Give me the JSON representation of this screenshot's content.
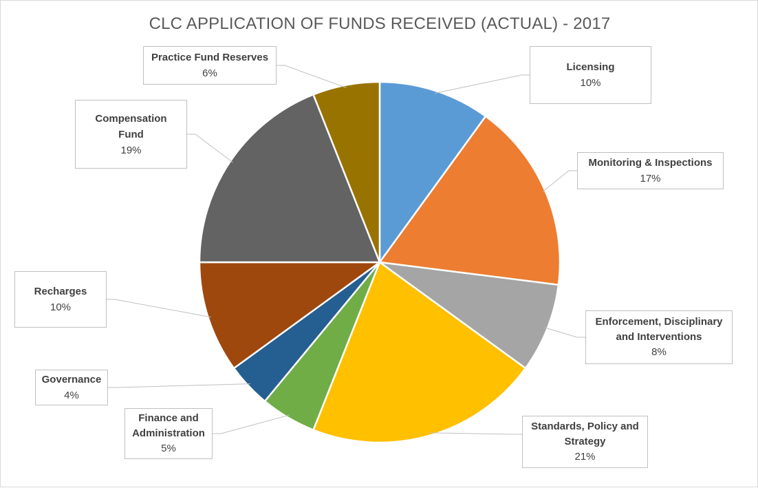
{
  "chart_data": {
    "type": "pie",
    "title": "CLC APPLICATION OF FUNDS RECEIVED (ACTUAL) - 2017",
    "slices": [
      {
        "label": "Licensing",
        "value": 10,
        "value_label": "10%",
        "color": "#5b9bd5"
      },
      {
        "label": "Monitoring & Inspections",
        "value": 17,
        "value_label": "17%",
        "color": "#ed7d31"
      },
      {
        "label": "Enforcement, Disciplinary and Interventions",
        "value": 8,
        "value_label": "8%",
        "color": "#a5a5a5"
      },
      {
        "label": "Standards, Policy and Strategy",
        "value": 21,
        "value_label": "21%",
        "color": "#ffc000"
      },
      {
        "label": "Finance and Administration",
        "value": 5,
        "value_label": "5%",
        "color": "#70ad47"
      },
      {
        "label": "Governance",
        "value": 4,
        "value_label": "4%",
        "color": "#255e91"
      },
      {
        "label": "Recharges",
        "value": 10,
        "value_label": "10%",
        "color": "#9e480e"
      },
      {
        "label": "Compensation Fund",
        "value": 19,
        "value_label": "19%",
        "color": "#636363"
      },
      {
        "label": "Practice Fund Reserves",
        "value": 6,
        "value_label": "6%",
        "color": "#997300"
      }
    ]
  }
}
